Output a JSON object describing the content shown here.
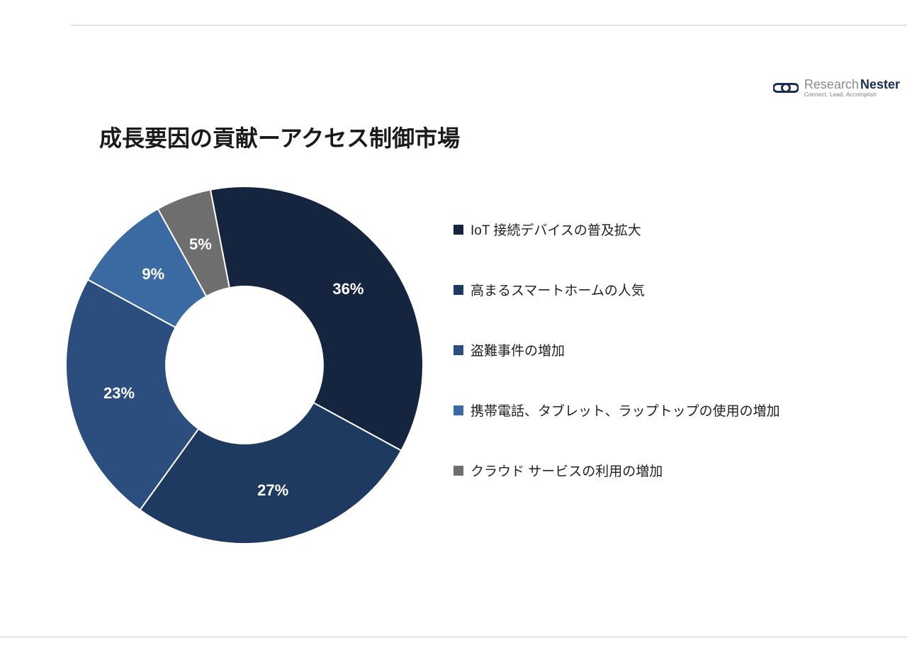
{
  "brand": {
    "name1": "Research",
    "name2": "Nester",
    "tagline": "Connect. Lead. Accomplish",
    "icon_color": "#1a2d52"
  },
  "title": "成長要因の貢献ーアクセス制御市場",
  "chart": {
    "type": "donut",
    "background_color": "#ffffff",
    "inner_radius_ratio": 0.44,
    "label_fontsize": 22,
    "label_color": "#ffffff",
    "label_fontweight": "bold",
    "legend_fontsize": 19,
    "legend_color": "#222222",
    "start_angle_deg": -11,
    "slices": [
      {
        "label": "IoT 接続デバイスの普及拡大",
        "value": 36,
        "display": "36%",
        "color": "#15243f"
      },
      {
        "label": "高まるスマートホームの人気",
        "value": 27,
        "display": "27%",
        "color": "#1e3a60"
      },
      {
        "label": "盗難事件の増加",
        "value": 23,
        "display": "23%",
        "color": "#2b4e7e"
      },
      {
        "label": "携帯電話、タブレット、ラップトップの使用の増加",
        "value": 9,
        "display": "9%",
        "color": "#3b6aa3"
      },
      {
        "label": "クラウド サービスの利用の増加",
        "value": 5,
        "display": "5%",
        "color": "#6e6e6e"
      }
    ]
  }
}
